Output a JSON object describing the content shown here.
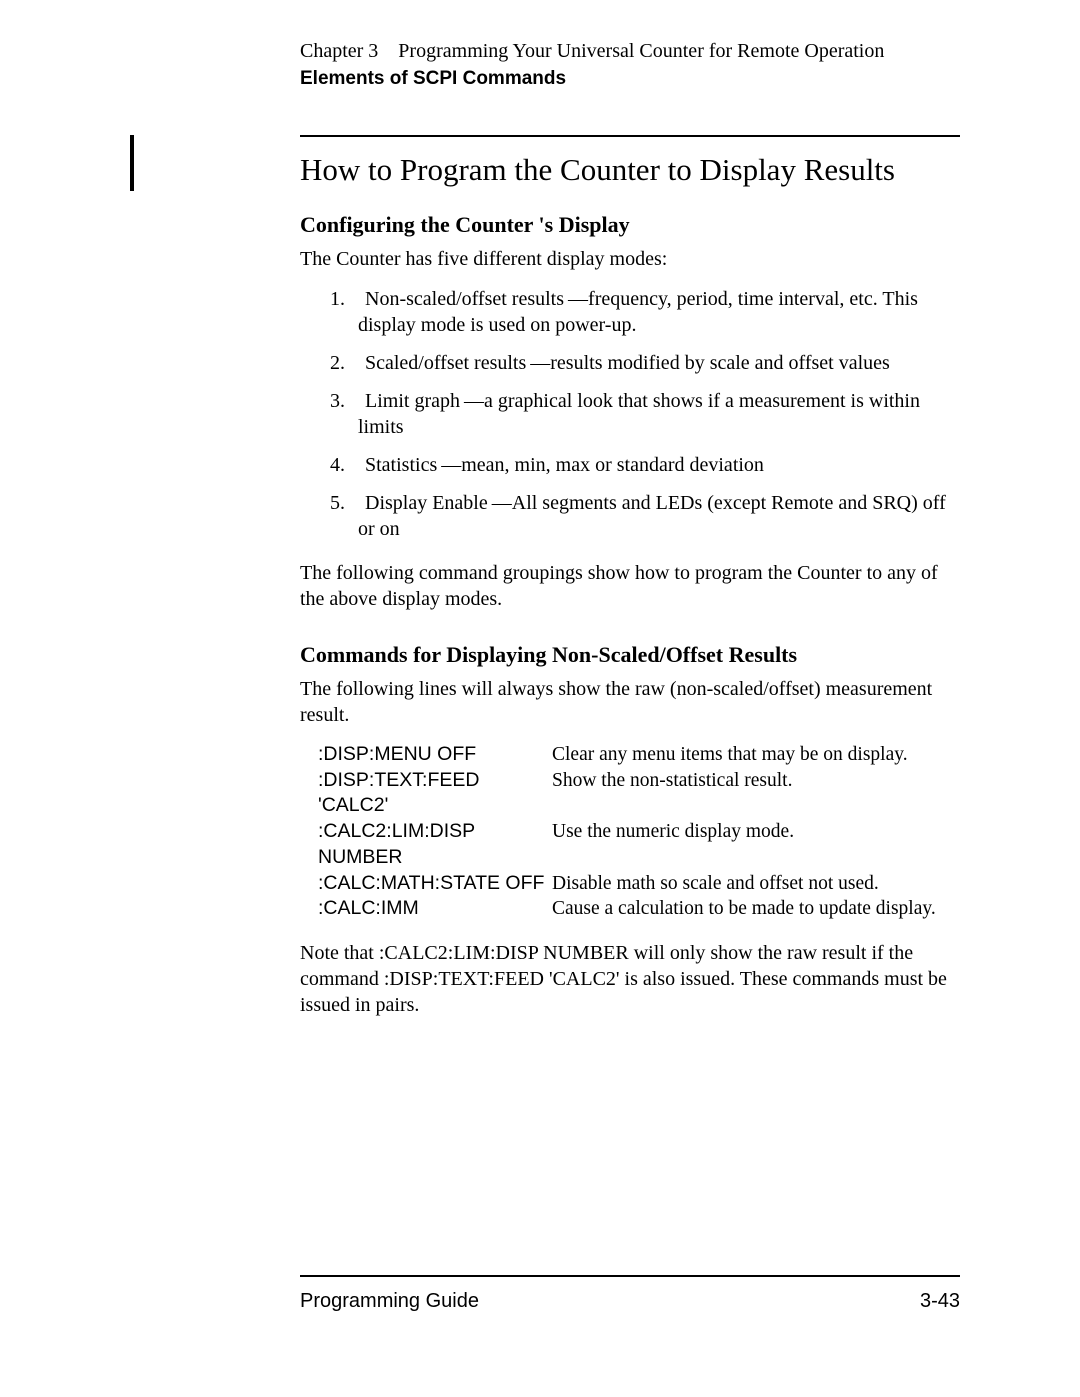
{
  "header": {
    "chapter_line": "Chapter 3 Programming Your Universal Counter for Remote Operation",
    "subheader": "Elements of SCPI Commands"
  },
  "content": {
    "title": "How to Program the Counter to Display Results",
    "section1_heading": "Configuring the Counter 's Display",
    "section1_intro": "The Counter has five different display modes:",
    "list_items": [
      "1. Non-scaled/offset results —frequency, period, time interval, etc. This display mode is used on power-up.",
      "2. Scaled/offset results —results modified by scale and offset values",
      "3. Limit graph —a graphical look that shows if a measurement is within limits",
      "4. Statistics —mean, min, max or standard deviation",
      "5. Display Enable —All segments and LEDs (except Remote and SRQ) off or on"
    ],
    "section1_para2": "The following command groupings show how to program the Counter to any of the above display modes.",
    "section2_heading": "Commands for Displaying Non-Scaled/Offset Results",
    "section2_intro": "The following lines will always show the raw (non-scaled/offset) measurement result.",
    "commands": [
      {
        "cmd": ":DISP:MENU OFF",
        "desc": "Clear any menu items that may be on display."
      },
      {
        "cmd": ":DISP:TEXT:FEED 'CALC2'",
        "desc": "Show the non-statistical result."
      },
      {
        "cmd": ":CALC2:LIM:DISP NUMBER",
        "desc": "Use the numeric display mode."
      },
      {
        "cmd": ":CALC:MATH:STATE OFF",
        "desc": "Disable math so scale and offset not used."
      },
      {
        "cmd": ":CALC:IMM",
        "desc": "Cause a calculation to be made to update display."
      }
    ],
    "section2_note": "Note that :CALC2:LIM:DISP NUMBER will only show the raw result if the command :DISP:TEXT:FEED  'CALC2' is also issued. These commands must be issued in pairs."
  },
  "footer": {
    "left": "Programming Guide",
    "right": "3-43"
  }
}
